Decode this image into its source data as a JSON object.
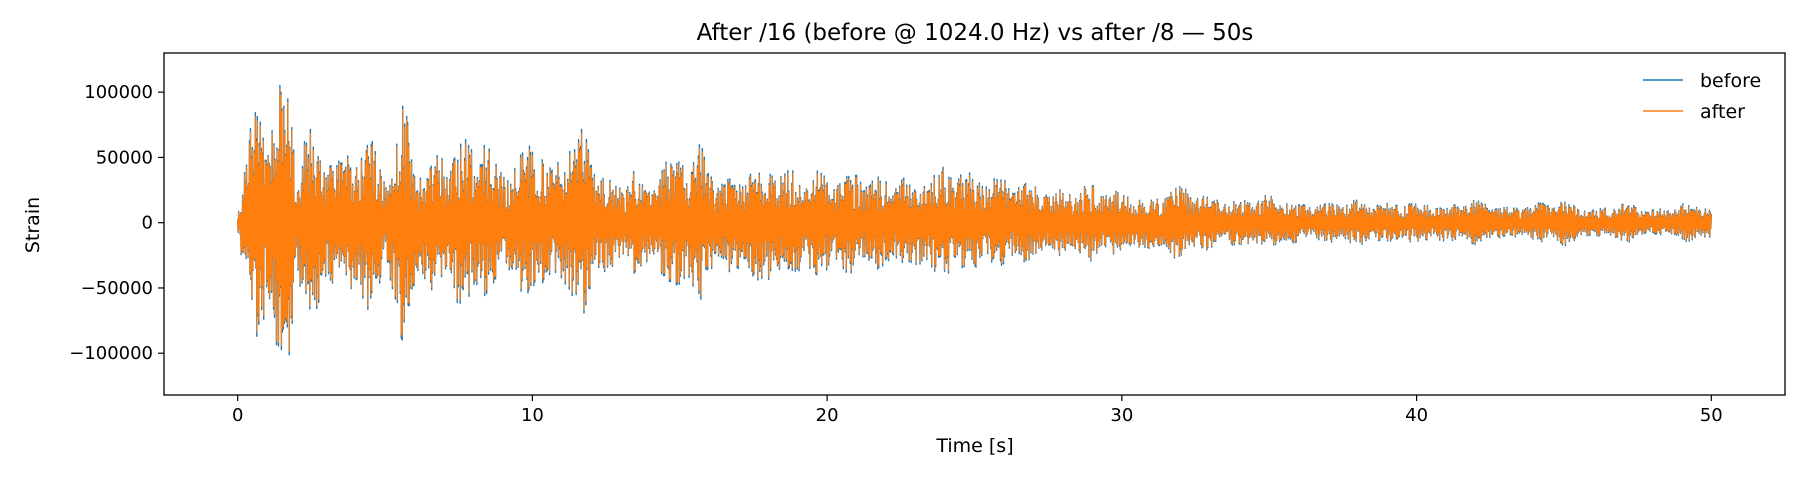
{
  "chart_data": {
    "type": "line",
    "title": "After /16 (before @ 1024.0 Hz) vs after /8 — 50s",
    "xlabel": "Time [s]",
    "ylabel": "Strain",
    "xlim": [
      -2.5,
      52.5
    ],
    "ylim": [
      -132000,
      130000
    ],
    "xticks": [
      0,
      10,
      20,
      30,
      40,
      50
    ],
    "xtick_labels": [
      "0",
      "10",
      "20",
      "30",
      "40",
      "50"
    ],
    "yticks": [
      -100000,
      -50000,
      0,
      50000,
      100000
    ],
    "ytick_labels": [
      "−100000",
      "−50000",
      "0",
      "50000",
      "100000"
    ],
    "grid": false,
    "legend_position": "top-right",
    "series": [
      {
        "name": "before",
        "color": "#1f77b4",
        "envelope": {
          "t": [
            0,
            0.3,
            0.7,
            1.0,
            1.4,
            1.7,
            2.0,
            2.4,
            3.0,
            3.5,
            4.0,
            4.5,
            5.0,
            5.6,
            6.2,
            7.0,
            7.6,
            8.2,
            9.0,
            9.5,
            10.0,
            10.7,
            11.2,
            11.7,
            12.2,
            13.0,
            13.5,
            14.0,
            14.5,
            15.0,
            15.6,
            16.3,
            17.0,
            18.0,
            18.7,
            19.5,
            20.0,
            21.0,
            22.0,
            23.0,
            24.0,
            25.0,
            26.0,
            27.0,
            28.0,
            29.0,
            30.0,
            31.0,
            32.0,
            33.0,
            34.0,
            35.0,
            36.0,
            37.0,
            38.0,
            39.0,
            40.0,
            41.0,
            42.0,
            43.0,
            44.0,
            45.0,
            46.0,
            47.0,
            48.0,
            49.0,
            50.0
          ],
          "amplitude": [
            12000,
            60000,
            108000,
            80000,
            110000,
            120000,
            60000,
            75000,
            60000,
            50000,
            73000,
            75000,
            40000,
            97000,
            45000,
            60000,
            65000,
            70000,
            45000,
            48000,
            70000,
            40000,
            70000,
            76000,
            45000,
            30000,
            45000,
            30000,
            50000,
            55000,
            65000,
            35000,
            40000,
            50000,
            40000,
            45000,
            40000,
            40000,
            35000,
            38000,
            45000,
            40000,
            35000,
            30000,
            25000,
            30000,
            25000,
            20000,
            30000,
            20000,
            18000,
            22000,
            15000,
            15000,
            18000,
            15000,
            17000,
            14000,
            18000,
            12000,
            15000,
            18000,
            10000,
            17000,
            10000,
            15000,
            13000
          ]
        }
      },
      {
        "name": "after",
        "color": "#ff7f0e",
        "envelope": {
          "t": [
            0,
            0.3,
            0.7,
            1.0,
            1.4,
            1.7,
            2.0,
            2.4,
            3.0,
            3.5,
            4.0,
            4.5,
            5.0,
            5.6,
            6.2,
            7.0,
            7.6,
            8.2,
            9.0,
            9.5,
            10.0,
            10.7,
            11.2,
            11.7,
            12.2,
            13.0,
            13.5,
            14.0,
            14.5,
            15.0,
            15.6,
            16.3,
            17.0,
            18.0,
            18.7,
            19.5,
            20.0,
            21.0,
            22.0,
            23.0,
            24.0,
            25.0,
            26.0,
            27.0,
            28.0,
            29.0,
            30.0,
            31.0,
            32.0,
            33.0,
            34.0,
            35.0,
            36.0,
            37.0,
            38.0,
            39.0,
            40.0,
            41.0,
            42.0,
            43.0,
            44.0,
            45.0,
            46.0,
            47.0,
            48.0,
            49.0,
            50.0
          ],
          "amplitude": [
            11000,
            58000,
            104000,
            78000,
            107000,
            117000,
            58000,
            72000,
            58000,
            48000,
            71000,
            72000,
            38000,
            94000,
            43000,
            58000,
            62000,
            67000,
            43000,
            46000,
            67000,
            38000,
            67000,
            73000,
            43000,
            29000,
            43000,
            29000,
            48000,
            53000,
            62000,
            33000,
            38000,
            48000,
            38000,
            43000,
            38000,
            38000,
            33000,
            36000,
            43000,
            38000,
            33000,
            29000,
            24000,
            29000,
            24000,
            19000,
            29000,
            19000,
            17000,
            21000,
            14000,
            14000,
            17000,
            14000,
            16000,
            13000,
            17000,
            11000,
            14000,
            17000,
            9000,
            16000,
            9000,
            14000,
            12000
          ]
        }
      }
    ]
  }
}
